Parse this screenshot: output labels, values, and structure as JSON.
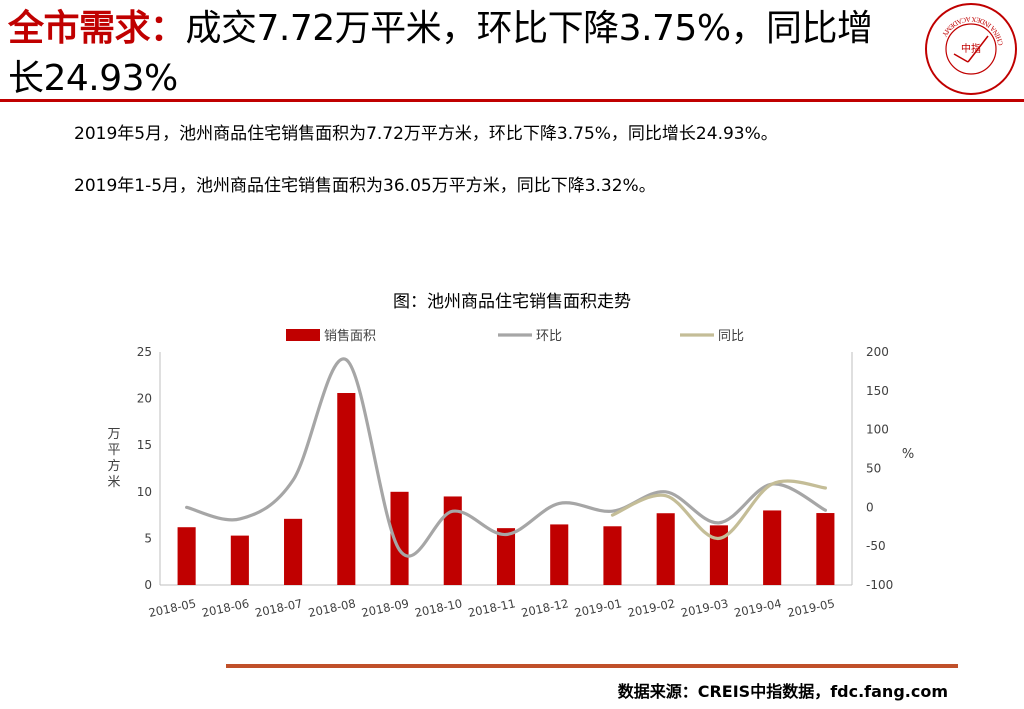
{
  "header": {
    "title_lead": "全市需求：",
    "title_rest": "成交7.72万平米，环比下降3.75%，同比增长24.93%",
    "logo_center": "中指",
    "logo_ring_text": "CHINA INDEX ACADEMY"
  },
  "body": {
    "para1": "2019年5月，池州商品住宅销售面积为7.72万平方米，环比下降3.75%，同比增长24.93%。",
    "para2": "2019年1-5月，池州商品住宅销售面积为36.05万平方米，同比下降3.32%。"
  },
  "chart_title": "图：池州商品住宅销售面积走势",
  "chart_data": {
    "type": "bar",
    "categories": [
      "2018-05",
      "2018-06",
      "2018-07",
      "2018-08",
      "2018-09",
      "2018-10",
      "2018-11",
      "2018-12",
      "2019-01",
      "2019-02",
      "2019-03",
      "2019-04",
      "2019-05"
    ],
    "series": [
      {
        "name": "销售面积",
        "type": "bar",
        "axis": "left",
        "color": "#c00000",
        "values": [
          6.2,
          5.3,
          7.1,
          20.6,
          10.0,
          9.5,
          6.1,
          6.5,
          6.3,
          7.7,
          6.4,
          8.0,
          7.72
        ]
      },
      {
        "name": "环比",
        "type": "line",
        "axis": "right",
        "color": "#a6a6a6",
        "values": [
          0,
          -15,
          35,
          190,
          -55,
          -5,
          -35,
          5,
          -5,
          20,
          -20,
          30,
          -3.75
        ]
      },
      {
        "name": "同比",
        "type": "line",
        "axis": "right",
        "color": "#c4bd97",
        "values": [
          null,
          null,
          null,
          null,
          null,
          null,
          null,
          null,
          -10,
          15,
          -40,
          30,
          24.93
        ]
      }
    ],
    "ylabel_left": "万平方米",
    "ylabel_right": "%",
    "ylim_left": [
      0,
      25
    ],
    "yticks_left": [
      0,
      5,
      10,
      15,
      20,
      25
    ],
    "ylim_right": [
      -100,
      200
    ],
    "yticks_right": [
      -100,
      -50,
      0,
      50,
      100,
      150,
      200
    ],
    "legend_position": "top",
    "grid": false
  },
  "footer": {
    "source": "数据来源：CREIS中指数据，fdc.fang.com"
  }
}
